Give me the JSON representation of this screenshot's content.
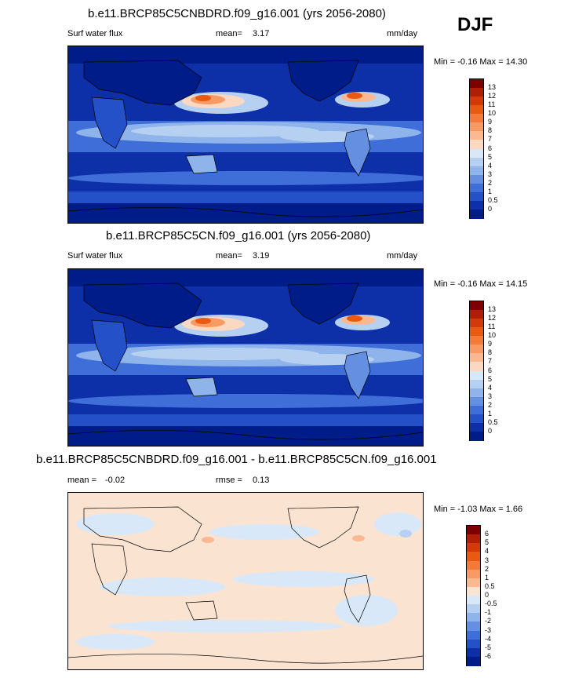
{
  "season": "DJF",
  "panels": [
    {
      "title": "b.e11.BRCP85C5CNBDRD.f09_g16.001 (yrs 2056-2080)",
      "variable": "Surf water flux",
      "mean_label": "mean=",
      "mean_value": "3.17",
      "units": "mm/day",
      "minmax": "Min =  -0.16 Max =  14.30",
      "colorbar": {
        "labels": [
          "13",
          "12",
          "11",
          "10",
          "9",
          "8",
          "7",
          "6",
          "5",
          "4",
          "3",
          "2",
          "1",
          "0.5",
          "0"
        ],
        "colors": [
          "#7f0000",
          "#b01f05",
          "#d23a0a",
          "#e85a12",
          "#f47a3a",
          "#f89a64",
          "#fbb891",
          "#fbd8c2",
          "#d9e8f8",
          "#b6d0f2",
          "#8fb4ec",
          "#6590e2",
          "#3f6ed8",
          "#2450c8",
          "#0d30a8",
          "#001c88"
        ]
      }
    },
    {
      "title": "b.e11.BRCP85C5CN.f09_g16.001 (yrs 2056-2080)",
      "variable": "Surf water flux",
      "mean_label": "mean=",
      "mean_value": "3.19",
      "units": "mm/day",
      "minmax": "Min =  -0.16 Max =  14.15",
      "colorbar": {
        "labels": [
          "13",
          "12",
          "11",
          "10",
          "9",
          "8",
          "7",
          "6",
          "5",
          "4",
          "3",
          "2",
          "1",
          "0.5",
          "0"
        ],
        "colors": [
          "#7f0000",
          "#b01f05",
          "#d23a0a",
          "#e85a12",
          "#f47a3a",
          "#f89a64",
          "#fbb891",
          "#fbd8c2",
          "#d9e8f8",
          "#b6d0f2",
          "#8fb4ec",
          "#6590e2",
          "#3f6ed8",
          "#2450c8",
          "#0d30a8",
          "#001c88"
        ]
      }
    },
    {
      "title": "b.e11.BRCP85C5CNBDRD.f09_g16.001 - b.e11.BRCP85C5CN.f09_g16.001",
      "mean_label": "mean =",
      "mean_value": "-0.02",
      "rmse_label": "rmse =",
      "rmse_value": "0.13",
      "minmax": "Min =  -1.03 Max =   1.66",
      "colorbar": {
        "labels": [
          "6",
          "5",
          "4",
          "3",
          "2",
          "1",
          "0.5",
          "0",
          "-0.5",
          "-1",
          "-2",
          "-3",
          "-4",
          "-5",
          "-6"
        ],
        "colors": [
          "#7f0000",
          "#b01f05",
          "#d23a0a",
          "#e85a12",
          "#f47a3a",
          "#f89a64",
          "#fbb891",
          "#fbe3d2",
          "#d9e8f8",
          "#b6d0f2",
          "#8fb4ec",
          "#6590e2",
          "#3f6ed8",
          "#2450c8",
          "#0d30a8",
          "#001c88"
        ]
      }
    }
  ]
}
